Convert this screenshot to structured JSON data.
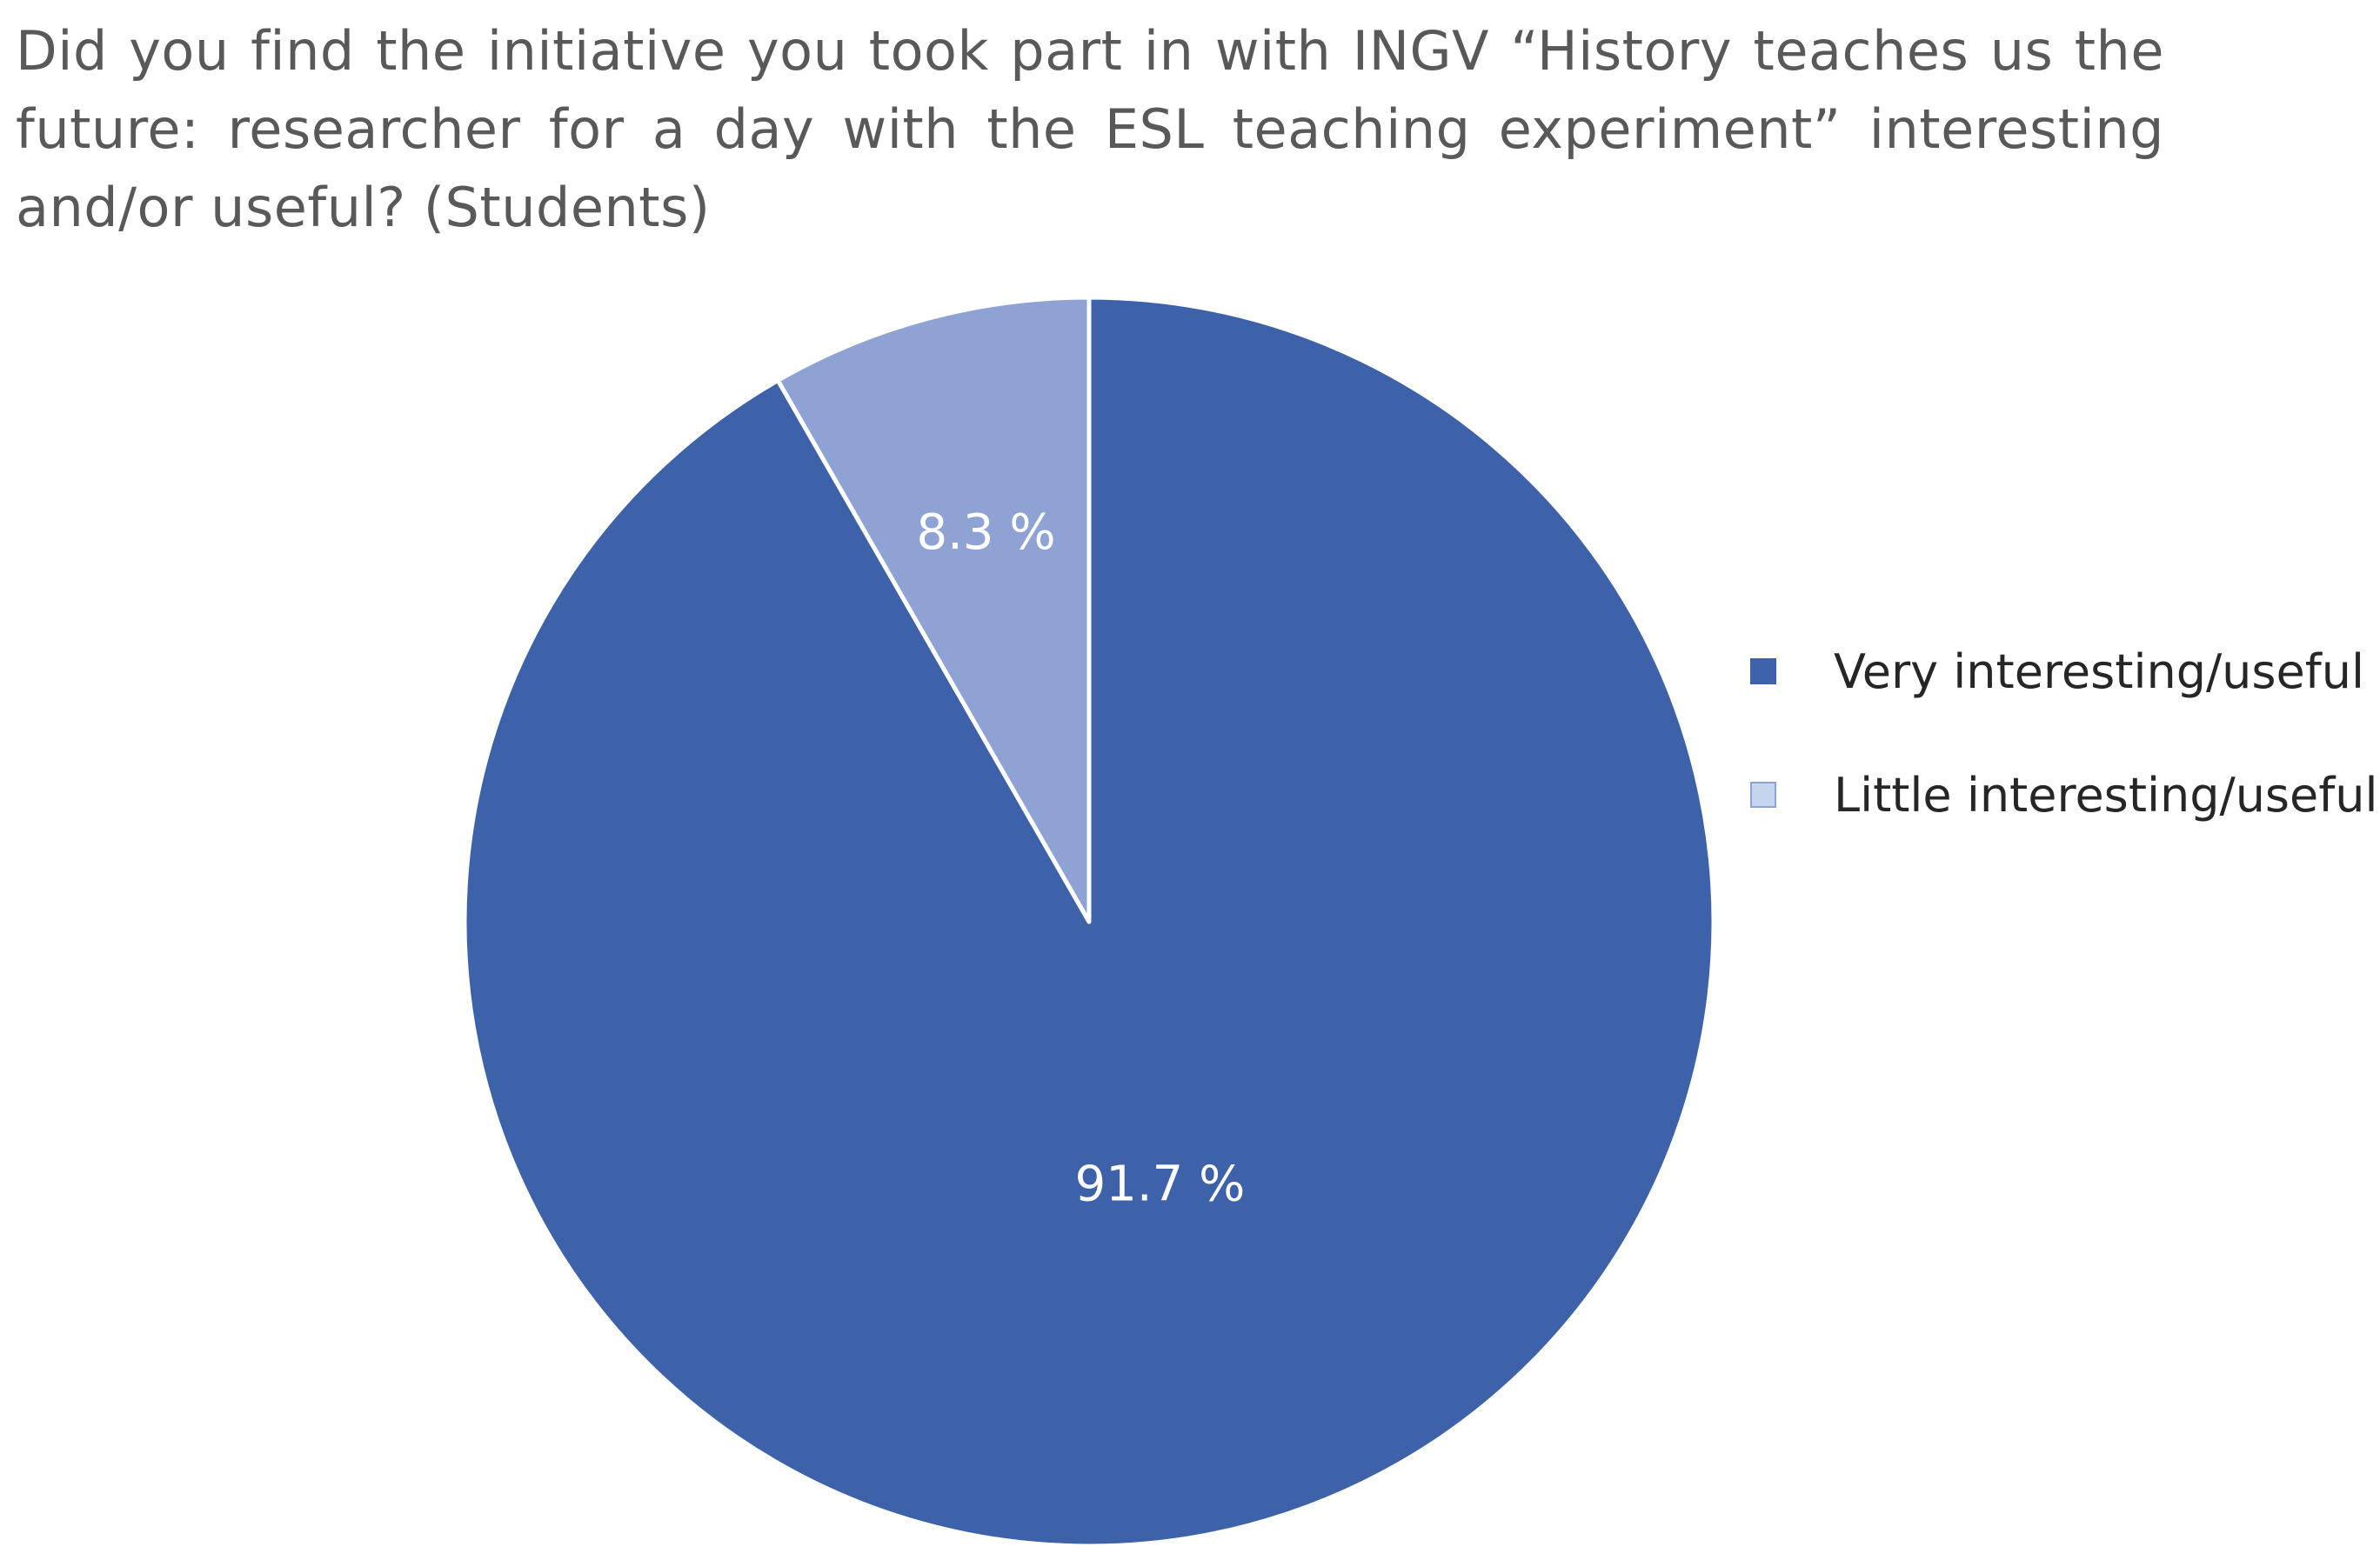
{
  "chart_data": {
    "type": "pie",
    "title": "Did you find the initiative you took part in with INGV “History teaches us the future: researcher for a day with the ESL teaching experiment” interesting and/or useful? (Students)",
    "slices": [
      {
        "name": "Very interesting/useful",
        "value": 91.7,
        "label": "91.7 %",
        "color": "#3d62aa"
      },
      {
        "name": "Little interesting/useful",
        "value": 8.3,
        "label": "8.3 %",
        "color": "#8ea2d4"
      }
    ],
    "legend": {
      "placement": "right",
      "items": [
        {
          "label": "Very interesting/useful",
          "color": "#3d62aa"
        },
        {
          "label": "Little interesting/useful",
          "color": "#c5d5ee"
        }
      ]
    },
    "slice_border_color": "#ffffff"
  }
}
